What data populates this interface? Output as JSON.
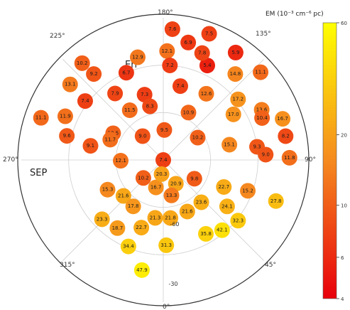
{
  "chart_data": {
    "type": "scatter",
    "projection": "polar",
    "colorbar": {
      "title": "EM (10⁻³ cm⁻⁶ pc)",
      "ticks": [
        "60",
        "20",
        "10",
        "6",
        "4"
      ],
      "tick_values": [
        60,
        20,
        10,
        6,
        4
      ],
      "scale": "log",
      "range": [
        4,
        60
      ],
      "colors": {
        "low": "#e8000b",
        "mid": "#f58a1f",
        "high": "#ffff00"
      }
    },
    "angle_ticks": [
      "180°",
      "135°",
      "90°",
      "45°",
      "0°",
      "315°",
      "270°",
      "225°"
    ],
    "angle_tick_values": [
      180,
      135,
      90,
      45,
      0,
      315,
      270,
      225
    ],
    "radius_ticks": [
      "-60",
      "-30"
    ],
    "radius_tick_values": [
      -60,
      -30
    ],
    "annotations": [
      "Eri",
      "SEP"
    ],
    "grid": true,
    "points": [
      {
        "az": 176,
        "lat": -7,
        "value": 7.6
      },
      {
        "az": 160,
        "lat": -5,
        "value": 7.5
      },
      {
        "az": 168,
        "lat": -14,
        "value": 6.9
      },
      {
        "az": 146,
        "lat": -8,
        "value": 5.9
      },
      {
        "az": 132,
        "lat": -7,
        "value": 11.1
      },
      {
        "az": 140,
        "lat": -19,
        "value": 14.8
      },
      {
        "az": 155,
        "lat": -24,
        "value": 5.4
      },
      {
        "az": 160,
        "lat": -18,
        "value": 7.8
      },
      {
        "az": 178,
        "lat": -21,
        "value": 12.1
      },
      {
        "az": 176,
        "lat": -30,
        "value": 7.2
      },
      {
        "az": 194,
        "lat": -23,
        "value": 12.9
      },
      {
        "az": 203,
        "lat": -30,
        "value": 6.7
      },
      {
        "az": 220,
        "lat": -10,
        "value": 10.2
      },
      {
        "az": 231,
        "lat": -14,
        "value": 13.1
      },
      {
        "az": 219,
        "lat": -20,
        "value": 9.2
      },
      {
        "az": 251,
        "lat": -8,
        "value": 11.1
      },
      {
        "az": 246,
        "lat": -22,
        "value": 11.9
      },
      {
        "az": 233,
        "lat": -28,
        "value": 7.4
      },
      {
        "az": 216,
        "lat": -38,
        "value": 7.9
      },
      {
        "az": 196,
        "lat": -47,
        "value": 7.3
      },
      {
        "az": 167,
        "lat": -42,
        "value": 7.4
      },
      {
        "az": 147,
        "lat": -40,
        "value": 12.6
      },
      {
        "az": 129,
        "lat": -29,
        "value": 17.2
      },
      {
        "az": 117,
        "lat": -20,
        "value": 13.6
      },
      {
        "az": 109,
        "lat": -10,
        "value": 16.7
      },
      {
        "az": 113,
        "lat": -22,
        "value": 10.4
      },
      {
        "az": 101,
        "lat": -11,
        "value": 8.2
      },
      {
        "az": 123,
        "lat": -37,
        "value": 17.0
      },
      {
        "az": 152,
        "lat": -56,
        "value": 10.9
      },
      {
        "az": 194,
        "lat": -55,
        "value": 8.3
      },
      {
        "az": 214,
        "lat": -52,
        "value": 11.5
      },
      {
        "az": 256,
        "lat": -27,
        "value": 9.6
      },
      {
        "az": 259,
        "lat": -43,
        "value": 9.1
      },
      {
        "az": 178,
        "lat": -71,
        "value": 9.5
      },
      {
        "az": 123,
        "lat": -64,
        "value": 10.2
      },
      {
        "az": 103,
        "lat": -47,
        "value": 15.1
      },
      {
        "az": 98,
        "lat": -30,
        "value": 9.3
      },
      {
        "az": 91,
        "lat": -10,
        "value": 11.8
      },
      {
        "az": 93,
        "lat": -25,
        "value": 9.0
      },
      {
        "az": 242,
        "lat": -54,
        "value": 10.5
      },
      {
        "az": 221,
        "lat": -70,
        "value": 9.0
      },
      {
        "az": 249,
        "lat": -54,
        "value": 11.7
      },
      {
        "az": 271,
        "lat": -63,
        "value": 12.1
      },
      {
        "az": 18,
        "lat": -90,
        "value": 7.4
      },
      {
        "az": 59,
        "lat": -67,
        "value": 9.8
      },
      {
        "az": 66,
        "lat": -48,
        "value": 22.7
      },
      {
        "az": 70,
        "lat": -33,
        "value": 15.2
      },
      {
        "az": 70,
        "lat": -14,
        "value": 27.8
      },
      {
        "az": 51,
        "lat": -29,
        "value": 32.3
      },
      {
        "az": 54,
        "lat": -40,
        "value": 24.1
      },
      {
        "az": 42,
        "lat": -54,
        "value": 23.6
      },
      {
        "az": 28,
        "lat": -73,
        "value": 20.9
      },
      {
        "az": 13,
        "lat": -67,
        "value": 13.3
      },
      {
        "az": 345,
        "lat": -72,
        "value": 16.7
      },
      {
        "az": 312,
        "lat": -73,
        "value": 10.2
      },
      {
        "az": 298,
        "lat": -50,
        "value": 15.3
      },
      {
        "az": 312,
        "lat": -56,
        "value": 21.6
      },
      {
        "az": 327,
        "lat": -55,
        "value": 17.8
      },
      {
        "az": 314,
        "lat": -36,
        "value": 23.3
      },
      {
        "az": 326,
        "lat": -38,
        "value": 18.7
      },
      {
        "az": 342,
        "lat": -45,
        "value": 22.7
      },
      {
        "az": 352,
        "lat": -53,
        "value": 21.3
      },
      {
        "az": 7,
        "lat": -53,
        "value": 21.8
      },
      {
        "az": 25,
        "lat": -54,
        "value": 21.6
      },
      {
        "az": 353,
        "lat": -81,
        "value": 20.3
      },
      {
        "az": 30,
        "lat": -36,
        "value": 35.8
      },
      {
        "az": 40,
        "lat": -32,
        "value": 42.1
      },
      {
        "az": 338,
        "lat": -31,
        "value": 34.4
      },
      {
        "az": 2,
        "lat": -36,
        "value": 31.3
      },
      {
        "az": 349,
        "lat": -19,
        "value": 47.9
      }
    ]
  }
}
